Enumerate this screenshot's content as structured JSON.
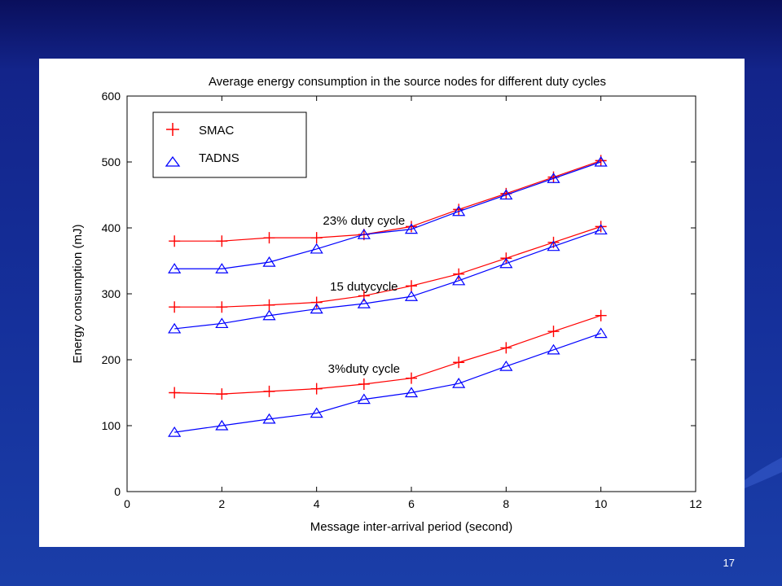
{
  "chart_data": {
    "type": "line",
    "title": "Average energy consumption in the source nodes for different duty cycles",
    "xlabel": "Message inter-arrival period (second)",
    "ylabel": "Energy consumption (mJ)",
    "xlim": [
      0,
      12
    ],
    "ylim": [
      0,
      600
    ],
    "xticks": [
      0,
      2,
      4,
      6,
      8,
      10,
      12
    ],
    "yticks": [
      0,
      100,
      200,
      300,
      400,
      500,
      600
    ],
    "grid": false,
    "legend_position": "top-left",
    "legend": [
      {
        "label": "SMAC",
        "marker": "plus",
        "color": "#ff0000"
      },
      {
        "label": "TADNS",
        "marker": "triangle",
        "color": "#0000ff"
      }
    ],
    "x": [
      1,
      2,
      3,
      4,
      5,
      6,
      7,
      8,
      9,
      10
    ],
    "series": [
      {
        "group": "23% duty cycle",
        "legend": "SMAC",
        "color": "#ff0000",
        "marker": "plus",
        "values": [
          380,
          380,
          385,
          385,
          390,
          402,
          428,
          452,
          477,
          502
        ]
      },
      {
        "group": "23% duty cycle",
        "legend": "TADNS",
        "color": "#0000ff",
        "marker": "triangle",
        "values": [
          338,
          338,
          348,
          368,
          390,
          398,
          425,
          450,
          475,
          500
        ]
      },
      {
        "group": "15 dutycycle",
        "legend": "SMAC",
        "color": "#ff0000",
        "marker": "plus",
        "values": [
          280,
          280,
          283,
          287,
          297,
          312,
          330,
          354,
          378,
          402
        ]
      },
      {
        "group": "15 dutycycle",
        "legend": "TADNS",
        "color": "#0000ff",
        "marker": "triangle",
        "values": [
          247,
          255,
          267,
          277,
          285,
          296,
          320,
          346,
          372,
          397
        ]
      },
      {
        "group": "3%duty cycle",
        "legend": "SMAC",
        "color": "#ff0000",
        "marker": "plus",
        "values": [
          150,
          148,
          152,
          156,
          163,
          172,
          196,
          218,
          243,
          267
        ]
      },
      {
        "group": "3%duty cycle",
        "legend": "TADNS",
        "color": "#0000ff",
        "marker": "triangle",
        "values": [
          90,
          100,
          110,
          119,
          140,
          150,
          164,
          190,
          215,
          240
        ]
      }
    ],
    "annotations": [
      {
        "text": "23% duty cycle",
        "x": 5.0,
        "y": 405
      },
      {
        "text": "15 dutycycle",
        "x": 5.0,
        "y": 305
      },
      {
        "text": "3%duty cycle",
        "x": 5.0,
        "y": 180
      }
    ]
  },
  "slide": {
    "number": "17"
  }
}
